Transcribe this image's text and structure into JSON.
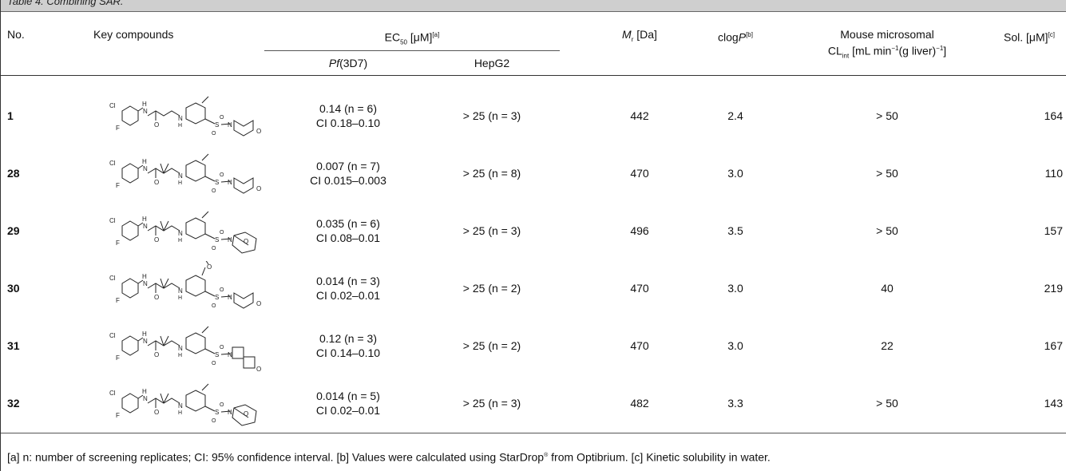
{
  "table": {
    "title": "Table 4. Combining SAR.",
    "headers": {
      "no": "No.",
      "key": "Key compounds",
      "ec50": "EC",
      "ec50_sub": "50",
      "ec50_unit": "[μM]",
      "ec50_note": "[a]",
      "pf": "Pf",
      "pf_strain": "(3D7)",
      "hepg2": "HepG2",
      "mr": "M",
      "mr_sub": "r",
      "mr_unit": "[Da]",
      "clogp": "clog",
      "clogp_p": "P",
      "clogp_note": "[b]",
      "mouse_line1": "Mouse microsomal",
      "mouse_cl": "CL",
      "mouse_cl_sub": "int",
      "mouse_unit_a": "[mL min",
      "mouse_unit_sup1": "−1",
      "mouse_unit_b": "(g liver)",
      "mouse_unit_sup2": "−1",
      "mouse_unit_c": "]",
      "sol": "Sol. [μM]",
      "sol_note": "[c]"
    },
    "rows": [
      {
        "no": "1",
        "pf": "0.14 (n = 6)",
        "ci": "CI 0.18–0.10",
        "hepg2": "> 25 (n = 3)",
        "mr": "442",
        "clogp": "2.4",
        "mouse": "> 50",
        "sol": "164"
      },
      {
        "no": "28",
        "pf": "0.007 (n = 7)",
        "ci": "CI 0.015–0.003",
        "hepg2": "> 25 (n = 8)",
        "mr": "470",
        "clogp": "3.0",
        "mouse": "> 50",
        "sol": "110"
      },
      {
        "no": "29",
        "pf": "0.035 (n = 6)",
        "ci": "CI 0.08–0.01",
        "hepg2": "> 25 (n = 3)",
        "mr": "496",
        "clogp": "3.5",
        "mouse": "> 50",
        "sol": "157"
      },
      {
        "no": "30",
        "pf": "0.014 (n = 3)",
        "ci": "CI 0.02–0.01",
        "hepg2": "> 25 (n = 2)",
        "mr": "470",
        "clogp": "3.0",
        "mouse": "40",
        "sol": "219"
      },
      {
        "no": "31",
        "pf": "0.12 (n = 3)",
        "ci": "CI 0.14–0.10",
        "hepg2": "> 25 (n = 2)",
        "mr": "470",
        "clogp": "3.0",
        "mouse": "22",
        "sol": "167"
      },
      {
        "no": "32",
        "pf": "0.014 (n = 5)",
        "ci": "CI 0.02–0.01",
        "hepg2": "> 25 (n = 3)",
        "mr": "482",
        "clogp": "3.3",
        "mouse": "> 50",
        "sol": "143"
      }
    ],
    "footnote": {
      "text_a": "[a] n: number of screening replicates; CI: 95% confidence interval. [b] Values were calculated using StarDrop",
      "reg": "®",
      "text_b": " from Optibrium. [c] Kinetic solubility in water."
    }
  }
}
